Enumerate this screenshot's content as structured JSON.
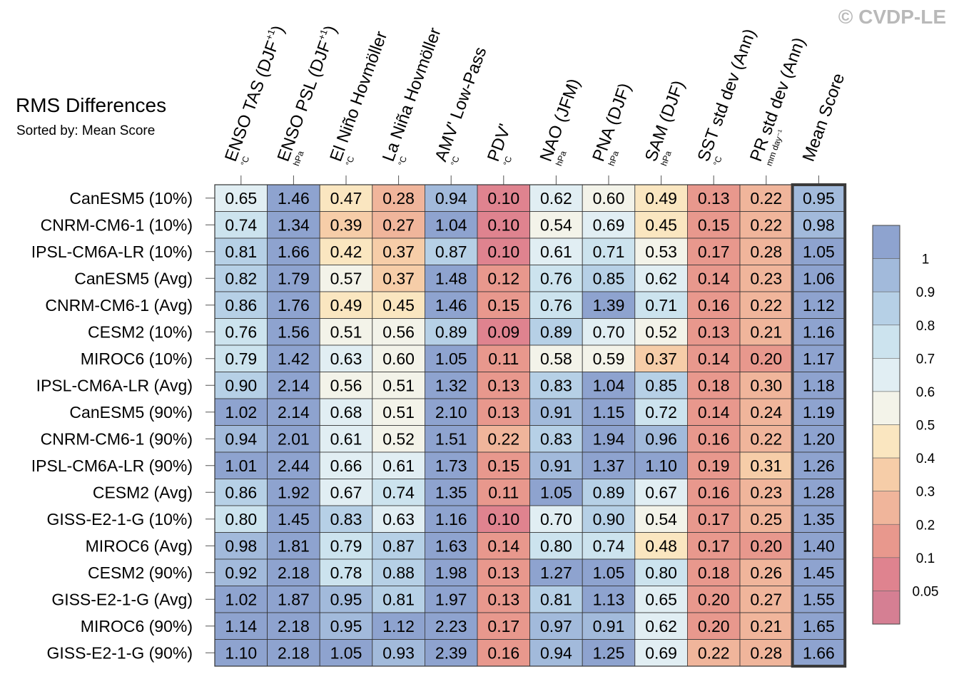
{
  "chart_data": {
    "type": "heatmap",
    "title": "RMS Differences",
    "subtitle": "Sorted by: Mean Score",
    "watermark": "© CVDP-LE",
    "columns": [
      {
        "label": "ENSO TAS (DJF",
        "sup": "+1",
        "close": ")",
        "unit": "°C"
      },
      {
        "label": "ENSO PSL (DJF",
        "sup": "+1",
        "close": ")",
        "unit": "hPa"
      },
      {
        "label": "El Niño Hovmöller",
        "sup": "",
        "close": "",
        "unit": "°C"
      },
      {
        "label": "La Niña Hovmöller",
        "sup": "",
        "close": "",
        "unit": "°C"
      },
      {
        "label": "AMV' Low-Pass",
        "sup": "",
        "close": "",
        "unit": "°C"
      },
      {
        "label": "PDV'",
        "sup": "",
        "close": "",
        "unit": "°C"
      },
      {
        "label": "NAO (JFM)",
        "sup": "",
        "close": "",
        "unit": "hPa"
      },
      {
        "label": "PNA (DJF)",
        "sup": "",
        "close": "",
        "unit": "hPa"
      },
      {
        "label": "SAM (DJF)",
        "sup": "",
        "close": "",
        "unit": "hPa"
      },
      {
        "label": "SST std dev (Ann)",
        "sup": "",
        "close": "",
        "unit": "°C"
      },
      {
        "label": "PR std dev (Ann)",
        "sup": "",
        "close": "",
        "unit": "mm day⁻¹"
      },
      {
        "label": "Mean Score",
        "sup": "",
        "close": "",
        "unit": ""
      }
    ],
    "rows": [
      "CanESM5 (10%)",
      "CNRM-CM6-1 (10%)",
      "IPSL-CM6A-LR (10%)",
      "CanESM5 (Avg)",
      "CNRM-CM6-1 (Avg)",
      "CESM2 (10%)",
      "MIROC6 (10%)",
      "IPSL-CM6A-LR (Avg)",
      "CanESM5 (90%)",
      "CNRM-CM6-1 (90%)",
      "IPSL-CM6A-LR (90%)",
      "CESM2 (Avg)",
      "GISS-E2-1-G (10%)",
      "MIROC6 (Avg)",
      "CESM2 (90%)",
      "GISS-E2-1-G (Avg)",
      "MIROC6 (90%)",
      "GISS-E2-1-G (90%)"
    ],
    "values": [
      [
        "0.65",
        "1.46",
        "0.47",
        "0.28",
        "0.94",
        "0.10",
        "0.62",
        "0.60",
        "0.49",
        "0.13",
        "0.22",
        "0.95"
      ],
      [
        "0.74",
        "1.34",
        "0.39",
        "0.27",
        "1.04",
        "0.10",
        "0.54",
        "0.69",
        "0.45",
        "0.15",
        "0.22",
        "0.98"
      ],
      [
        "0.81",
        "1.66",
        "0.42",
        "0.37",
        "0.87",
        "0.10",
        "0.61",
        "0.71",
        "0.53",
        "0.17",
        "0.28",
        "1.05"
      ],
      [
        "0.82",
        "1.79",
        "0.57",
        "0.37",
        "1.48",
        "0.12",
        "0.76",
        "0.85",
        "0.62",
        "0.14",
        "0.23",
        "1.06"
      ],
      [
        "0.86",
        "1.76",
        "0.49",
        "0.45",
        "1.46",
        "0.15",
        "0.76",
        "1.39",
        "0.71",
        "0.16",
        "0.22",
        "1.12"
      ],
      [
        "0.76",
        "1.56",
        "0.51",
        "0.56",
        "0.89",
        "0.09",
        "0.89",
        "0.70",
        "0.52",
        "0.13",
        "0.21",
        "1.16"
      ],
      [
        "0.79",
        "1.42",
        "0.63",
        "0.60",
        "1.05",
        "0.11",
        "0.58",
        "0.59",
        "0.37",
        "0.14",
        "0.20",
        "1.17"
      ],
      [
        "0.90",
        "2.14",
        "0.56",
        "0.51",
        "1.32",
        "0.13",
        "0.83",
        "1.04",
        "0.85",
        "0.18",
        "0.30",
        "1.18"
      ],
      [
        "1.02",
        "2.14",
        "0.68",
        "0.51",
        "2.10",
        "0.13",
        "0.91",
        "1.15",
        "0.72",
        "0.14",
        "0.24",
        "1.19"
      ],
      [
        "0.94",
        "2.01",
        "0.61",
        "0.52",
        "1.51",
        "0.22",
        "0.83",
        "1.94",
        "0.96",
        "0.16",
        "0.22",
        "1.20"
      ],
      [
        "1.01",
        "2.44",
        "0.66",
        "0.61",
        "1.73",
        "0.15",
        "0.91",
        "1.37",
        "1.10",
        "0.19",
        "0.31",
        "1.26"
      ],
      [
        "0.86",
        "1.92",
        "0.67",
        "0.74",
        "1.35",
        "0.11",
        "1.05",
        "0.89",
        "0.67",
        "0.16",
        "0.23",
        "1.28"
      ],
      [
        "0.80",
        "1.45",
        "0.83",
        "0.63",
        "1.16",
        "0.10",
        "0.70",
        "0.90",
        "0.54",
        "0.17",
        "0.25",
        "1.35"
      ],
      [
        "0.98",
        "1.81",
        "0.79",
        "0.87",
        "1.63",
        "0.14",
        "0.80",
        "0.74",
        "0.48",
        "0.17",
        "0.20",
        "1.40"
      ],
      [
        "0.92",
        "2.18",
        "0.78",
        "0.88",
        "1.98",
        "0.13",
        "1.27",
        "1.05",
        "0.80",
        "0.18",
        "0.26",
        "1.45"
      ],
      [
        "1.02",
        "1.87",
        "0.95",
        "0.81",
        "1.97",
        "0.13",
        "0.81",
        "1.13",
        "0.65",
        "0.20",
        "0.27",
        "1.55"
      ],
      [
        "1.14",
        "2.18",
        "0.95",
        "1.12",
        "2.23",
        "0.17",
        "0.97",
        "0.91",
        "0.62",
        "0.20",
        "0.21",
        "1.65"
      ],
      [
        "1.10",
        "2.18",
        "1.05",
        "0.93",
        "2.39",
        "0.16",
        "0.94",
        "1.25",
        "0.69",
        "0.22",
        "0.28",
        "1.66"
      ]
    ],
    "colorbar": {
      "tick_labels": [
        "1",
        "0.9",
        "0.8",
        "0.7",
        "0.6",
        "0.5",
        "0.4",
        "0.3",
        "0.2",
        "0.1",
        "0.05"
      ],
      "levels": [
        0.05,
        0.1,
        0.2,
        0.3,
        0.4,
        0.5,
        0.6,
        0.7,
        0.8,
        0.9,
        1.0
      ],
      "colors": [
        "#d57f93",
        "#df838f",
        "#e8988d",
        "#f0b59b",
        "#f6cda8",
        "#fae6c0",
        "#f3f3e9",
        "#e1eef3",
        "#cce3ee",
        "#b6d0e6",
        "#a2badb",
        "#8ea3cf"
      ]
    }
  }
}
